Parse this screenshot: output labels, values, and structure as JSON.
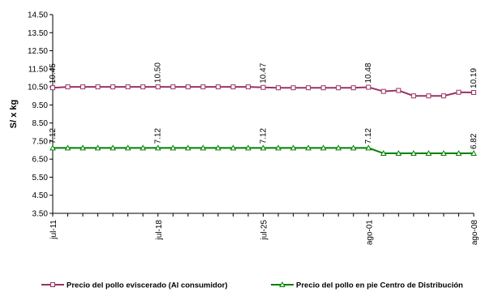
{
  "chart_data": {
    "type": "line",
    "ylabel": "S/ x kg",
    "xlabel": "",
    "ylim": [
      3.5,
      14.5
    ],
    "yticks": [
      "14.50",
      "13.50",
      "12.50",
      "11.50",
      "10.50",
      "9.50",
      "8.50",
      "7.50",
      "6.50",
      "5.50",
      "4.50",
      "3.50"
    ],
    "x": [
      "jul-11",
      "jul-12",
      "jul-13",
      "jul-14",
      "jul-15",
      "jul-16",
      "jul-17",
      "jul-18",
      "jul-19",
      "jul-20",
      "jul-21",
      "jul-22",
      "jul-23",
      "jul-24",
      "jul-25",
      "jul-26",
      "jul-27",
      "jul-28",
      "jul-29",
      "jul-30",
      "jul-31",
      "ago-01",
      "ago-02",
      "ago-03",
      "ago-04",
      "ago-05",
      "ago-06",
      "ago-07",
      "ago-08"
    ],
    "xtick_labels": [
      "jul-11",
      "jul-18",
      "jul-25",
      "ago-01",
      "ago-08"
    ],
    "series": [
      {
        "name": "Precio del pollo eviscerado (Al consumidor)",
        "color": "#993366",
        "marker": "square",
        "values": [
          10.45,
          10.5,
          10.5,
          10.5,
          10.5,
          10.5,
          10.5,
          10.5,
          10.5,
          10.5,
          10.5,
          10.5,
          10.5,
          10.5,
          10.47,
          10.45,
          10.45,
          10.45,
          10.45,
          10.45,
          10.45,
          10.48,
          10.25,
          10.3,
          10.0,
          10.0,
          10.0,
          10.2,
          10.19
        ],
        "labels": [
          {
            "index": 0,
            "text": "10.45"
          },
          {
            "index": 7,
            "text": "10.50"
          },
          {
            "index": 14,
            "text": "10.47"
          },
          {
            "index": 21,
            "text": "10.48"
          },
          {
            "index": 28,
            "text": "10.19"
          }
        ]
      },
      {
        "name": "Precio del pollo en pie Centro de Distribución",
        "color": "#008000",
        "marker": "triangle",
        "values": [
          7.12,
          7.12,
          7.12,
          7.12,
          7.12,
          7.12,
          7.12,
          7.12,
          7.12,
          7.12,
          7.12,
          7.12,
          7.12,
          7.12,
          7.12,
          7.12,
          7.12,
          7.12,
          7.12,
          7.12,
          7.12,
          7.12,
          6.82,
          6.82,
          6.82,
          6.82,
          6.82,
          6.82,
          6.82
        ],
        "labels": [
          {
            "index": 0,
            "text": "7.12"
          },
          {
            "index": 7,
            "text": "7.12"
          },
          {
            "index": 14,
            "text": "7.12"
          },
          {
            "index": 21,
            "text": "7.12"
          },
          {
            "index": 28,
            "text": "6.82"
          }
        ]
      }
    ],
    "legend_position": "bottom",
    "grid": false
  }
}
